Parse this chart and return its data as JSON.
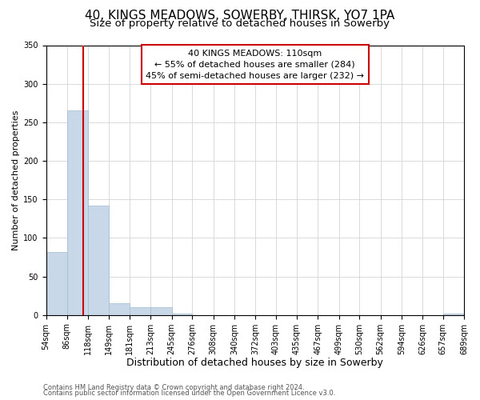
{
  "title": "40, KINGS MEADOWS, SOWERBY, THIRSK, YO7 1PA",
  "subtitle": "Size of property relative to detached houses in Sowerby",
  "xlabel": "Distribution of detached houses by size in Sowerby",
  "ylabel": "Number of detached properties",
  "bin_edges": [
    54,
    86,
    118,
    149,
    181,
    213,
    245,
    276,
    308,
    340,
    372,
    403,
    435,
    467,
    499,
    530,
    562,
    594,
    626,
    657,
    689
  ],
  "bin_labels": [
    "54sqm",
    "86sqm",
    "118sqm",
    "149sqm",
    "181sqm",
    "213sqm",
    "245sqm",
    "276sqm",
    "308sqm",
    "340sqm",
    "372sqm",
    "403sqm",
    "435sqm",
    "467sqm",
    "499sqm",
    "530sqm",
    "562sqm",
    "594sqm",
    "626sqm",
    "657sqm",
    "689sqm"
  ],
  "bar_heights": [
    82,
    265,
    142,
    15,
    10,
    10,
    2,
    0,
    0,
    0,
    0,
    0,
    0,
    0,
    0,
    0,
    0,
    0,
    0,
    2
  ],
  "bar_color": "#c8d8e8",
  "bar_edgecolor": "#a0bcd0",
  "vline_x": 110,
  "vline_color": "#cc0000",
  "ylim": [
    0,
    350
  ],
  "yticks": [
    0,
    50,
    100,
    150,
    200,
    250,
    300,
    350
  ],
  "annotation_line1": "40 KINGS MEADOWS: 110sqm",
  "annotation_line2": "← 55% of detached houses are smaller (284)",
  "annotation_line3": "45% of semi-detached houses are larger (232) →",
  "footer_line1": "Contains HM Land Registry data © Crown copyright and database right 2024.",
  "footer_line2": "Contains public sector information licensed under the Open Government Licence v3.0.",
  "bg_color": "#ffffff",
  "grid_color": "#cccccc",
  "title_fontsize": 11,
  "subtitle_fontsize": 9.5,
  "xlabel_fontsize": 9,
  "ylabel_fontsize": 8,
  "tick_fontsize": 7,
  "annotation_fontsize": 8,
  "footer_fontsize": 6
}
